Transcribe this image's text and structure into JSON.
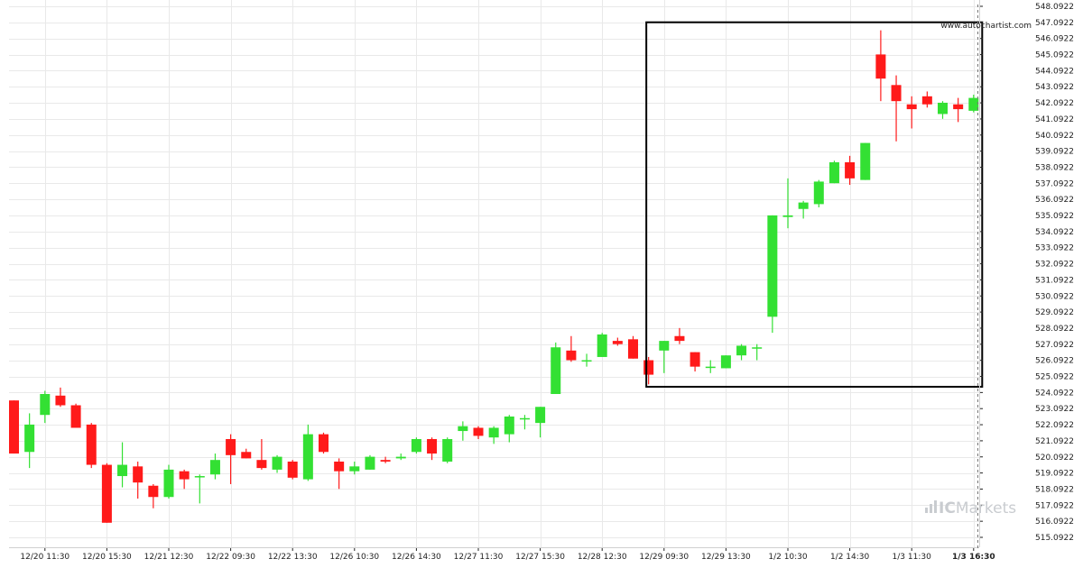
{
  "watermark": "www.autochartist.com",
  "brand": {
    "name": "ICMarkets",
    "prefix": "IC",
    "suffix": "Markets"
  },
  "colors": {
    "up": "#33e033",
    "down": "#ff1a1a",
    "grid": "#e9e9e9",
    "frame": "#000000",
    "axis": "#222222"
  },
  "chart_data": {
    "type": "candlestick",
    "ylim": [
      514.5,
      548.1
    ],
    "ytick_labels": [
      "515.0922",
      "516.0922",
      "517.0922",
      "518.0922",
      "519.0922",
      "520.0922",
      "521.0922",
      "522.0922",
      "523.0922",
      "524.0922",
      "525.0922",
      "526.0922",
      "527.0922",
      "528.0922",
      "529.0922",
      "530.0922",
      "531.0922",
      "532.0922",
      "533.0922",
      "534.0922",
      "535.0922",
      "536.0922",
      "537.0922",
      "538.0922",
      "539.0922",
      "540.0922",
      "541.0922",
      "542.0922",
      "543.0922",
      "544.0922",
      "545.0922",
      "546.0922",
      "547.0922",
      "548.0922"
    ],
    "ytick_values": [
      515.0922,
      516.0922,
      517.0922,
      518.0922,
      519.0922,
      520.0922,
      521.0922,
      522.0922,
      523.0922,
      524.0922,
      525.0922,
      526.0922,
      527.0922,
      528.0922,
      529.0922,
      530.0922,
      531.0922,
      532.0922,
      533.0922,
      534.0922,
      535.0922,
      536.0922,
      537.0922,
      538.0922,
      539.0922,
      540.0922,
      541.0922,
      542.0922,
      543.0922,
      544.0922,
      545.0922,
      546.0922,
      547.0922,
      548.0922
    ],
    "xtick_labels": [
      "12/20 11:30",
      "12/20 15:30",
      "12/21 12:30",
      "12/22 09:30",
      "12/22 13:30",
      "12/26 10:30",
      "12/26 14:30",
      "12/27 11:30",
      "12/27 15:30",
      "12/28 12:30",
      "12/29 09:30",
      "12/29 13:30",
      "1/2 10:30",
      "1/2 14:30",
      "1/3 11:30",
      "1/3 16:30"
    ],
    "xtick_index": [
      2,
      6,
      10,
      14,
      18,
      22,
      26,
      30,
      34,
      38,
      42,
      46,
      50,
      54,
      58,
      62
    ],
    "candles": [
      {
        "o": 523.6,
        "h": 523.6,
        "l": 520.3,
        "c": 520.3
      },
      {
        "o": 520.4,
        "h": 522.8,
        "l": 519.4,
        "c": 522.1
      },
      {
        "o": 522.7,
        "h": 524.2,
        "l": 522.2,
        "c": 524.0
      },
      {
        "o": 523.9,
        "h": 524.4,
        "l": 523.2,
        "c": 523.3
      },
      {
        "o": 523.3,
        "h": 523.4,
        "l": 521.9,
        "c": 521.9
      },
      {
        "o": 522.1,
        "h": 522.2,
        "l": 519.4,
        "c": 519.6
      },
      {
        "o": 519.6,
        "h": 519.7,
        "l": 516.0,
        "c": 516.0
      },
      {
        "o": 518.9,
        "h": 521.0,
        "l": 518.2,
        "c": 519.6
      },
      {
        "o": 519.5,
        "h": 519.8,
        "l": 517.5,
        "c": 518.5
      },
      {
        "o": 518.3,
        "h": 518.4,
        "l": 516.9,
        "c": 517.6
      },
      {
        "o": 517.6,
        "h": 519.6,
        "l": 517.5,
        "c": 519.3
      },
      {
        "o": 519.2,
        "h": 519.3,
        "l": 518.1,
        "c": 518.7
      },
      {
        "o": 518.9,
        "h": 519.0,
        "l": 517.2,
        "c": 518.9
      },
      {
        "o": 519.0,
        "h": 520.3,
        "l": 518.7,
        "c": 519.9
      },
      {
        "o": 521.2,
        "h": 521.5,
        "l": 518.4,
        "c": 520.2
      },
      {
        "o": 520.4,
        "h": 520.6,
        "l": 520.0,
        "c": 520.0
      },
      {
        "o": 519.9,
        "h": 521.2,
        "l": 519.3,
        "c": 519.4
      },
      {
        "o": 519.3,
        "h": 520.2,
        "l": 519.1,
        "c": 520.1
      },
      {
        "o": 519.8,
        "h": 519.9,
        "l": 518.7,
        "c": 518.8
      },
      {
        "o": 518.7,
        "h": 522.1,
        "l": 518.6,
        "c": 521.5
      },
      {
        "o": 521.5,
        "h": 521.6,
        "l": 520.3,
        "c": 520.4
      },
      {
        "o": 519.8,
        "h": 520.0,
        "l": 518.1,
        "c": 519.2
      },
      {
        "o": 519.2,
        "h": 519.8,
        "l": 519.0,
        "c": 519.5
      },
      {
        "o": 519.3,
        "h": 520.2,
        "l": 519.3,
        "c": 520.1
      },
      {
        "o": 519.9,
        "h": 520.1,
        "l": 519.7,
        "c": 519.8
      },
      {
        "o": 520.0,
        "h": 520.3,
        "l": 519.9,
        "c": 520.1
      },
      {
        "o": 520.4,
        "h": 521.3,
        "l": 520.3,
        "c": 521.2
      },
      {
        "o": 521.2,
        "h": 521.3,
        "l": 519.9,
        "c": 520.3
      },
      {
        "o": 519.8,
        "h": 521.3,
        "l": 519.7,
        "c": 521.2
      },
      {
        "o": 521.7,
        "h": 522.3,
        "l": 521.1,
        "c": 522.0
      },
      {
        "o": 521.9,
        "h": 522.0,
        "l": 521.2,
        "c": 521.4
      },
      {
        "o": 521.3,
        "h": 522.0,
        "l": 520.9,
        "c": 521.9
      },
      {
        "o": 521.5,
        "h": 522.7,
        "l": 521.0,
        "c": 522.6
      },
      {
        "o": 522.5,
        "h": 522.7,
        "l": 521.8,
        "c": 522.5
      },
      {
        "o": 522.2,
        "h": 523.2,
        "l": 521.3,
        "c": 523.2
      },
      {
        "o": 524.0,
        "h": 527.2,
        "l": 524.0,
        "c": 526.9
      },
      {
        "o": 526.7,
        "h": 527.6,
        "l": 526.0,
        "c": 526.1
      },
      {
        "o": 526.1,
        "h": 526.5,
        "l": 525.7,
        "c": 526.1
      },
      {
        "o": 526.3,
        "h": 527.8,
        "l": 526.3,
        "c": 527.7
      },
      {
        "o": 527.3,
        "h": 527.5,
        "l": 527.0,
        "c": 527.1
      },
      {
        "o": 527.4,
        "h": 527.6,
        "l": 526.2,
        "c": 526.2
      },
      {
        "o": 526.1,
        "h": 526.3,
        "l": 524.6,
        "c": 525.2
      },
      {
        "o": 526.7,
        "h": 527.3,
        "l": 525.3,
        "c": 527.3
      },
      {
        "o": 527.6,
        "h": 528.1,
        "l": 527.1,
        "c": 527.3
      },
      {
        "o": 526.6,
        "h": 526.6,
        "l": 525.4,
        "c": 525.7
      },
      {
        "o": 525.7,
        "h": 526.1,
        "l": 525.3,
        "c": 525.7
      },
      {
        "o": 525.6,
        "h": 526.4,
        "l": 525.6,
        "c": 526.4
      },
      {
        "o": 526.4,
        "h": 527.1,
        "l": 526.1,
        "c": 527.0
      },
      {
        "o": 526.9,
        "h": 527.1,
        "l": 526.1,
        "c": 526.9
      },
      {
        "o": 528.8,
        "h": 535.1,
        "l": 527.8,
        "c": 535.1
      },
      {
        "o": 535.0,
        "h": 537.4,
        "l": 534.3,
        "c": 535.1
      },
      {
        "o": 535.5,
        "h": 536.0,
        "l": 534.9,
        "c": 535.9
      },
      {
        "o": 535.8,
        "h": 537.3,
        "l": 535.6,
        "c": 537.2
      },
      {
        "o": 537.1,
        "h": 538.5,
        "l": 537.1,
        "c": 538.4
      },
      {
        "o": 538.4,
        "h": 538.8,
        "l": 537.0,
        "c": 537.4
      },
      {
        "o": 537.3,
        "h": 539.6,
        "l": 537.3,
        "c": 539.6
      },
      {
        "o": 545.1,
        "h": 546.6,
        "l": 542.2,
        "c": 543.6
      },
      {
        "o": 543.2,
        "h": 543.8,
        "l": 539.7,
        "c": 542.2
      },
      {
        "o": 542.0,
        "h": 542.5,
        "l": 540.5,
        "c": 541.7
      },
      {
        "o": 542.5,
        "h": 542.8,
        "l": 541.8,
        "c": 542.0
      },
      {
        "o": 541.4,
        "h": 542.2,
        "l": 541.1,
        "c": 542.1
      },
      {
        "o": 542.0,
        "h": 542.4,
        "l": 540.9,
        "c": 541.7
      },
      {
        "o": 541.6,
        "h": 542.6,
        "l": 541.5,
        "c": 542.4
      }
    ],
    "pattern_box": {
      "start_index": 41,
      "end_index": 62,
      "price_low": 524.45,
      "price_high": 547.1
    },
    "current_time_index": 62,
    "grid": true
  }
}
